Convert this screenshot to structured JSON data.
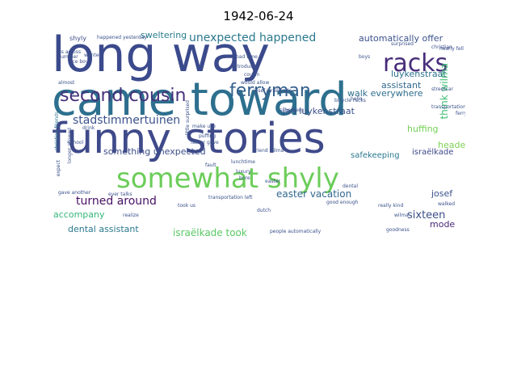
{
  "chart_data": {
    "type": "wordcloud",
    "title": "1942-06-24",
    "background": "#ffffff",
    "words": [
      {
        "text": "long way",
        "color": "#3b4a8c"
      },
      {
        "text": "came toward",
        "color": "#2d6f8e"
      },
      {
        "text": "funny stories",
        "color": "#3f4a8a"
      },
      {
        "text": "somewhat shyly",
        "color": "#6ccd5a"
      },
      {
        "text": "second cousin",
        "color": "#46307a"
      },
      {
        "text": "ferryman",
        "color": "#35608d"
      },
      {
        "text": "racks",
        "color": "#472c7a"
      },
      {
        "text": "unexpected happened",
        "color": "#2a788e"
      },
      {
        "text": "stadstimmertuinen",
        "color": "#3b528b"
      },
      {
        "text": "something unexpected",
        "color": "#3d4e8a"
      },
      {
        "text": "turned around",
        "color": "#471164"
      },
      {
        "text": "easter vacation",
        "color": "#31688e"
      },
      {
        "text": "sixteen",
        "color": "#3c4f8a"
      },
      {
        "text": "dental assistant",
        "color": "#2a788e"
      },
      {
        "text": "israëlkade took",
        "color": "#5ac864"
      },
      {
        "text": "accompany",
        "color": "#35b779"
      },
      {
        "text": "luykenstraat",
        "color": "#2c718e"
      },
      {
        "text": "automatically offer",
        "color": "#3b528b"
      },
      {
        "text": "walk everywhere",
        "color": "#2e6e8e"
      },
      {
        "text": "assistant",
        "color": "#31688e"
      },
      {
        "text": "think wilma",
        "color": "#3fbc73"
      },
      {
        "text": "jan luykenstraat",
        "color": "#3b528b"
      },
      {
        "text": "huffing",
        "color": "#75d054"
      },
      {
        "text": "headed",
        "color": "#7ad151"
      },
      {
        "text": "israëlkade",
        "color": "#3e4989"
      },
      {
        "text": "safekeeping",
        "color": "#2a788e"
      },
      {
        "text": "sweltering",
        "color": "#287c8e"
      },
      {
        "text": "josef",
        "color": "#3b528b"
      },
      {
        "text": "mode",
        "color": "#482878"
      },
      {
        "text": "shyly",
        "color": "#3e4a89"
      },
      {
        "text": "happened yesterday",
        "color": "#3b528b"
      },
      {
        "text": "us across",
        "color": "#3b528b"
      },
      {
        "text": "nice boy",
        "color": "#3e4989"
      },
      {
        "text": "christian friends",
        "color": "#2c728e"
      },
      {
        "text": "introduced",
        "color": "#3b528b"
      },
      {
        "text": "bad time",
        "color": "#3b528b"
      },
      {
        "text": "cousin",
        "color": "#3b528b"
      },
      {
        "text": "would allow",
        "color": "#3b528b"
      },
      {
        "text": "josef israëlkade",
        "color": "#3b528b"
      },
      {
        "text": "silberberg",
        "color": "#3b528b"
      },
      {
        "text": "bicycle racks",
        "color": "#3b528b"
      },
      {
        "text": "nearly fell",
        "color": "#3b528b"
      },
      {
        "text": "streetcar",
        "color": "#3b528b"
      },
      {
        "text": "transportation",
        "color": "#3b528b"
      },
      {
        "text": "friend wilma",
        "color": "#3b528b"
      },
      {
        "text": "drink",
        "color": "#3b528b"
      },
      {
        "text": "make use",
        "color": "#3b528b"
      },
      {
        "text": "puffing",
        "color": "#3b528b"
      },
      {
        "text": "father gave",
        "color": "#3b528b"
      },
      {
        "text": "fault",
        "color": "#3b528b"
      },
      {
        "text": "lunchtime",
        "color": "#3b528b"
      },
      {
        "text": "luxury",
        "color": "#3b528b"
      },
      {
        "text": "bore",
        "color": "#3b528b"
      },
      {
        "text": "longer allowed",
        "color": "#3b528b"
      },
      {
        "text": "gave another",
        "color": "#3b528b"
      },
      {
        "text": "ever talks",
        "color": "#3b528b"
      },
      {
        "text": "took us",
        "color": "#3b528b"
      },
      {
        "text": "transportation left",
        "color": "#3b528b"
      },
      {
        "text": "dutch",
        "color": "#3b528b"
      },
      {
        "text": "good enough",
        "color": "#3b528b"
      },
      {
        "text": "really kind",
        "color": "#3b528b"
      },
      {
        "text": "wilma",
        "color": "#3b528b"
      },
      {
        "text": "walked",
        "color": "#3b528b"
      },
      {
        "text": "ferry",
        "color": "#3b528b"
      },
      {
        "text": "people automatically",
        "color": "#3b528b"
      },
      {
        "text": "goodness",
        "color": "#3b528b"
      },
      {
        "text": "summer",
        "color": "#3b528b"
      },
      {
        "text": "easter",
        "color": "#3b528b"
      },
      {
        "text": "dental",
        "color": "#3b528b"
      },
      {
        "text": "christian",
        "color": "#3b528b"
      },
      {
        "text": "hello",
        "color": "#3b528b"
      },
      {
        "text": "little surprised",
        "color": "#3b528b"
      },
      {
        "text": "expect",
        "color": "#3b528b"
      },
      {
        "text": "wanted",
        "color": "#3b528b"
      },
      {
        "text": "almost",
        "color": "#3b528b"
      },
      {
        "text": "boys",
        "color": "#3b528b"
      },
      {
        "text": "surprised",
        "color": "#3b528b"
      },
      {
        "text": "realize",
        "color": "#3b528b"
      },
      {
        "text": "school",
        "color": "#3b528b"
      }
    ]
  }
}
